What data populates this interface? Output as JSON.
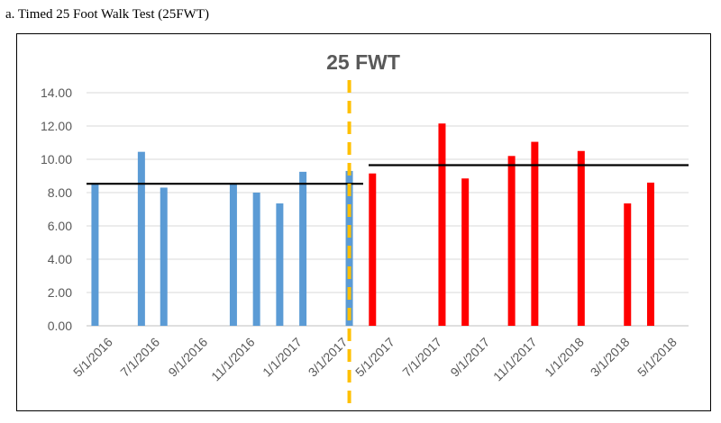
{
  "caption": "a. Timed 25 Foot Walk Test (25FWT)",
  "chart_data": {
    "type": "bar",
    "title": "25 FWT",
    "xlabel": "",
    "ylabel": "",
    "ylim": [
      0,
      14
    ],
    "yticks": [
      "0.00",
      "2.00",
      "4.00",
      "6.00",
      "8.00",
      "10.00",
      "12.00",
      "14.00"
    ],
    "xlim": [
      "2016-04-01",
      "2018-05-20"
    ],
    "xticks": [
      {
        "date": "2016-05-01",
        "label": "5/1/2016"
      },
      {
        "date": "2016-07-01",
        "label": "7/1/2016"
      },
      {
        "date": "2016-09-01",
        "label": "9/1/2016"
      },
      {
        "date": "2016-11-01",
        "label": "11/1/2016"
      },
      {
        "date": "2017-01-01",
        "label": "1/1/2017"
      },
      {
        "date": "2017-03-01",
        "label": "3/1/2017"
      },
      {
        "date": "2017-05-01",
        "label": "5/1/2017"
      },
      {
        "date": "2017-07-01",
        "label": "7/1/2017"
      },
      {
        "date": "2017-09-01",
        "label": "9/1/2017"
      },
      {
        "date": "2017-11-01",
        "label": "11/1/2017"
      },
      {
        "date": "2018-01-01",
        "label": "1/1/2018"
      },
      {
        "date": "2018-03-01",
        "label": "3/1/2018"
      },
      {
        "date": "2018-05-01",
        "label": "5/1/2018"
      }
    ],
    "grid": true,
    "series": [
      {
        "color": "#5B9BD5",
        "points": [
          {
            "date": "2016-04-12",
            "value": 8.5
          },
          {
            "date": "2016-06-11",
            "value": 10.45
          },
          {
            "date": "2016-07-10",
            "value": 8.3
          },
          {
            "date": "2016-10-08",
            "value": 8.5
          },
          {
            "date": "2016-11-07",
            "value": 8.0
          },
          {
            "date": "2016-12-07",
            "value": 7.35
          },
          {
            "date": "2017-01-06",
            "value": 9.25
          },
          {
            "date": "2017-03-07",
            "value": 9.3
          }
        ]
      },
      {
        "color": "#FF0000",
        "points": [
          {
            "date": "2017-04-06",
            "value": 9.15
          },
          {
            "date": "2017-07-05",
            "value": 12.15
          },
          {
            "date": "2017-08-04",
            "value": 8.85
          },
          {
            "date": "2017-10-03",
            "value": 10.2
          },
          {
            "date": "2017-11-02",
            "value": 11.05
          },
          {
            "date": "2018-01-01",
            "value": 10.5
          },
          {
            "date": "2018-03-02",
            "value": 7.35
          },
          {
            "date": "2018-04-01",
            "value": 8.6
          }
        ]
      }
    ],
    "reference_lines": [
      {
        "from": "2016-04-01",
        "to": "2017-03-25",
        "value": 8.53,
        "color": "#000000"
      },
      {
        "from": "2017-04-01",
        "to": "2018-05-20",
        "value": 9.65,
        "color": "#000000"
      }
    ],
    "divider": {
      "date": "2017-03-07",
      "color": "#FFC000"
    }
  }
}
